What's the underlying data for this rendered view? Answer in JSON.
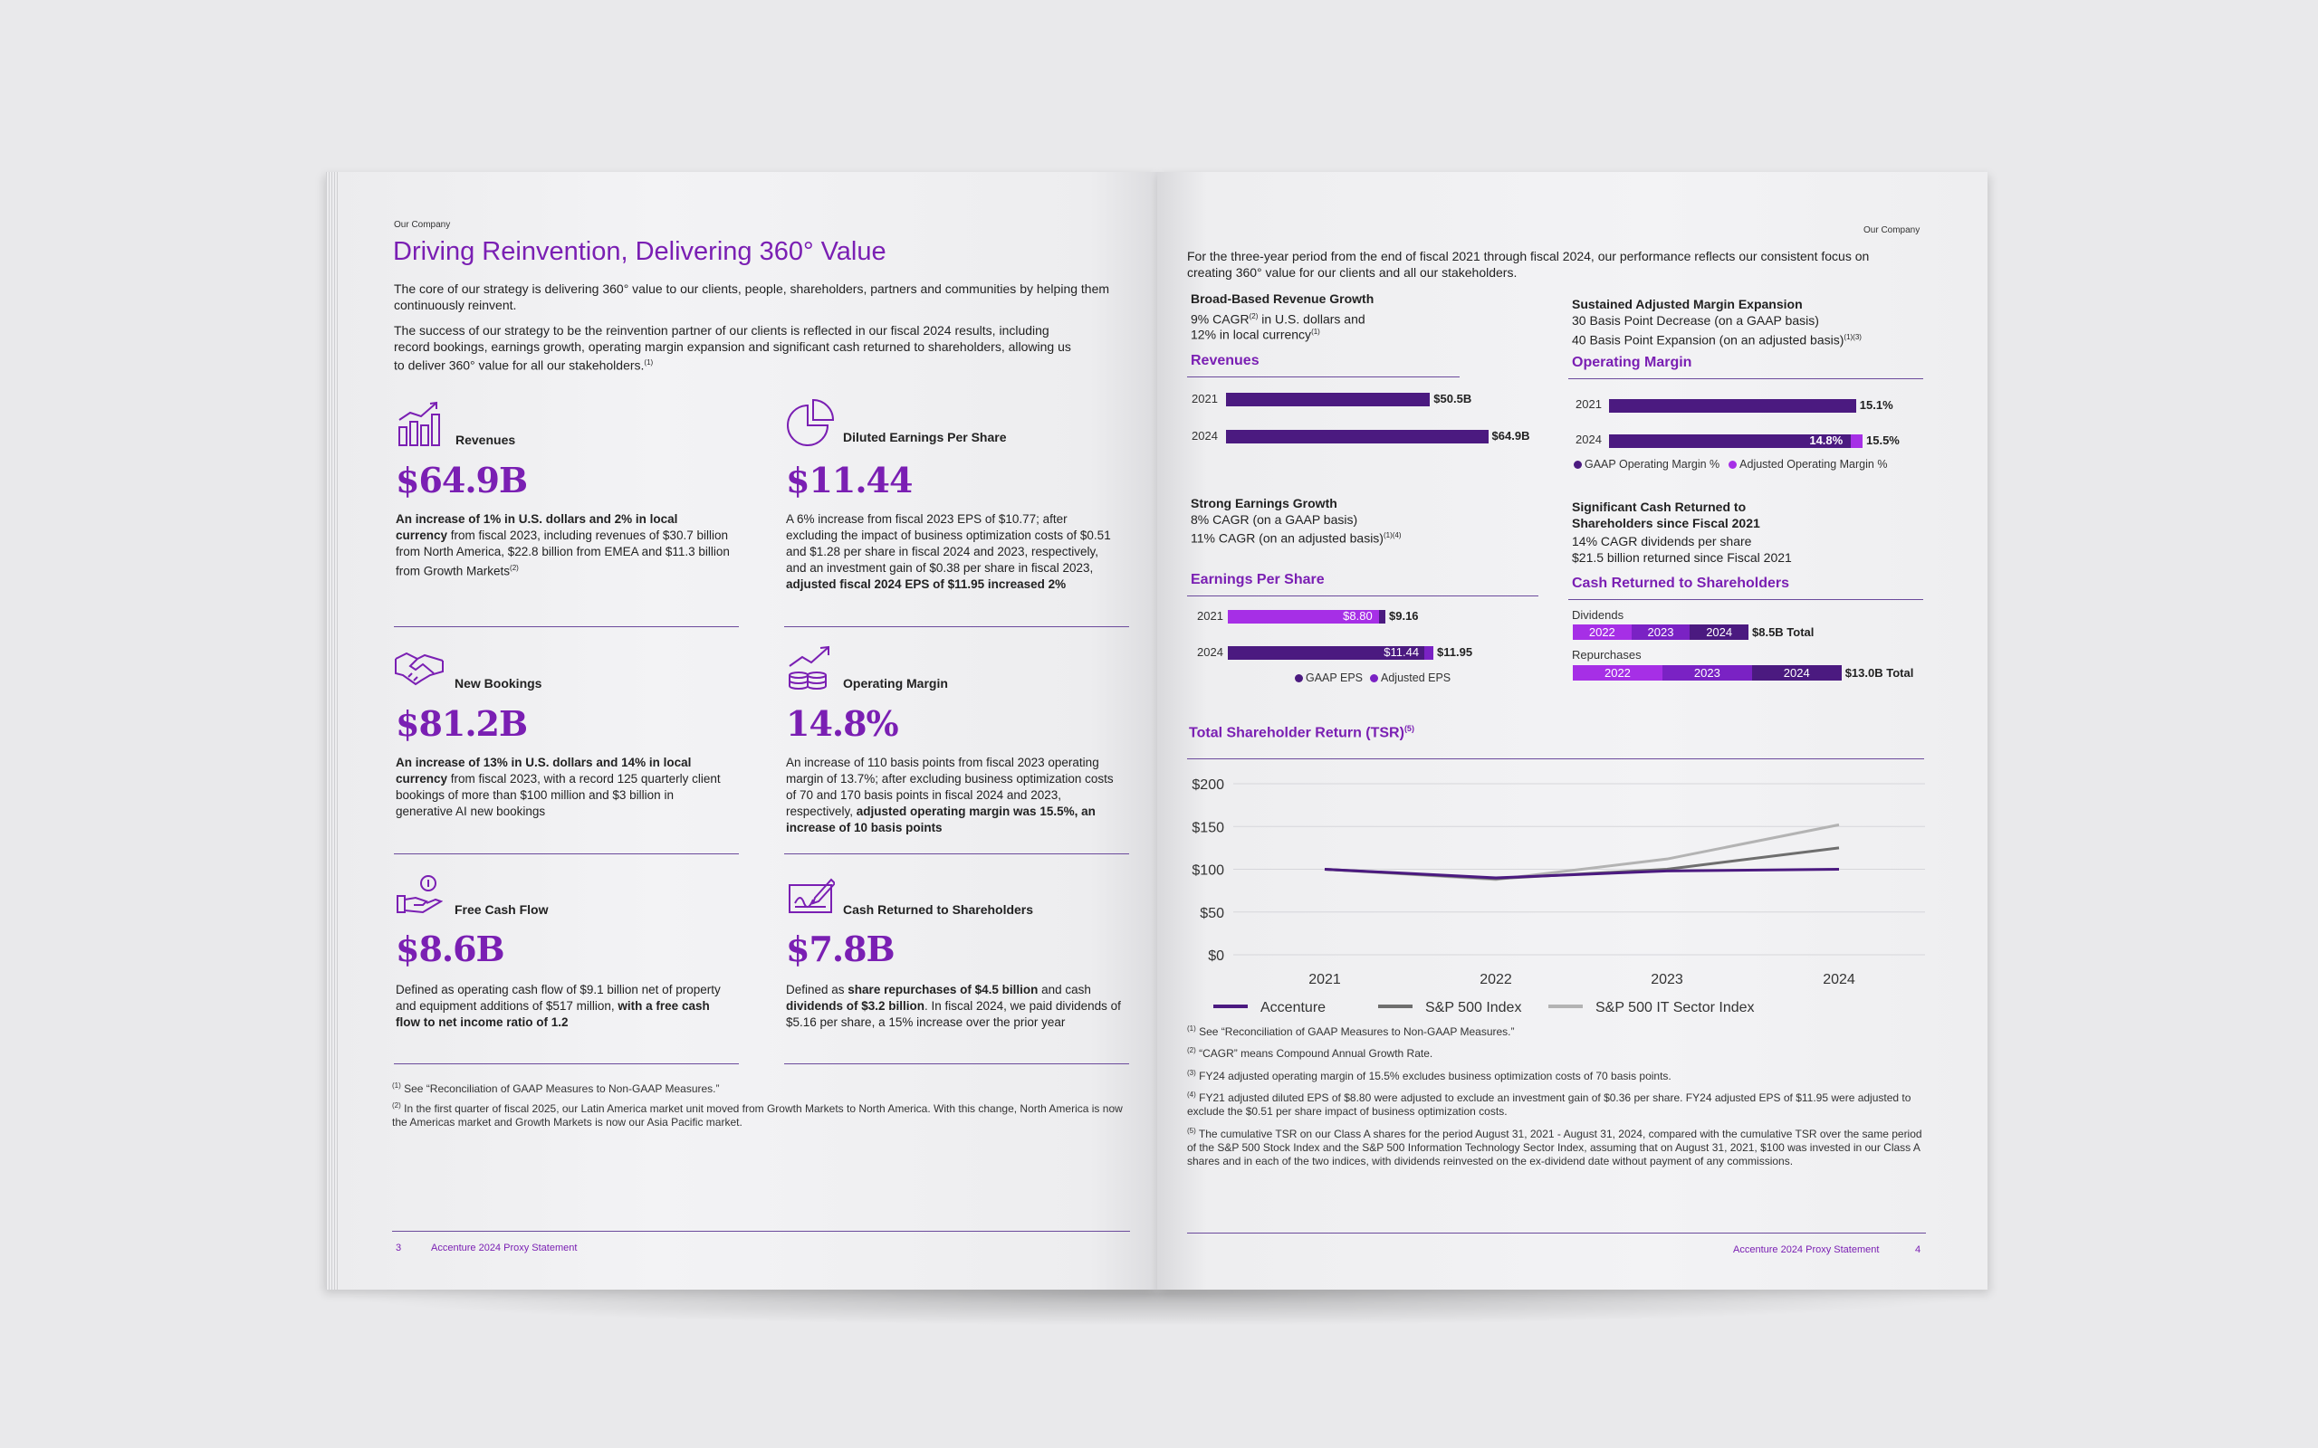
{
  "left": {
    "section": "Our Company",
    "title": "Driving Reinvention, Delivering 360° Value",
    "intro1": "The core of our strategy is delivering 360° value to our clients, people, shareholders, partners and communities by helping them continuously reinvent.",
    "intro2": "The success of our strategy to be the reinvention partner of our clients is reflected in our fiscal 2024 results, including record bookings, earnings growth, operating margin expansion and significant cash returned to shareholders, allowing us to deliver 360° value for all our stakeholders.",
    "intro2_sup": "(1)",
    "metrics": [
      {
        "label": "Revenues",
        "value": "$64.9B",
        "desc_bold": "An increase of 1% in U.S. dollars and 2% in local currency",
        "desc": " from fiscal 2023, including revenues of $30.7 billion from North America, $22.8 billion from EMEA and $11.3 billion from Growth Markets",
        "desc_sup": "(2)",
        "icon": "bar-chart-icon"
      },
      {
        "label": "Diluted Earnings Per Share",
        "value": "$11.44",
        "desc": "A 6% increase from fiscal 2023 EPS of $10.77; after excluding the impact of business optimization costs of $0.51 and $1.28 per share in fiscal 2024 and 2023, respectively, and an investment gain of $0.38 per share in fiscal 2023, ",
        "desc_bold": "adjusted fiscal 2024 EPS of $11.95 increased 2%",
        "icon": "pie-chart-icon"
      },
      {
        "label": "New Bookings",
        "value": "$81.2B",
        "desc_bold": "An increase of 13% in U.S. dollars and 14% in local currency",
        "desc": " from fiscal 2023, with a record 125 quarterly client bookings of more than $100 million and $3 billion in generative AI new bookings",
        "icon": "handshake-icon"
      },
      {
        "label": "Operating Margin",
        "value": "14.8%",
        "desc": "An increase of 110 basis points from fiscal 2023 operating margin of 13.7%; after excluding business optimization costs of 70 and 170 basis points in fiscal 2024 and 2023, respectively, ",
        "desc_bold": "adjusted operating margin was 15.5%, an increase of 10 basis points",
        "icon": "coins-growth-icon"
      },
      {
        "label": "Free Cash Flow",
        "value": "$8.6B",
        "desc": "Defined as operating cash flow of $9.1 billion net of property and equipment additions of $517 million, ",
        "desc_bold": "with a free cash flow to net income ratio of 1.2",
        "icon": "hand-coin-icon"
      },
      {
        "label": "Cash Returned to Shareholders",
        "value": "$7.8B",
        "desc_pre": "Defined as ",
        "desc_bold": "share repurchases of $4.5 billion",
        "desc_mid": " and cash ",
        "desc_bold2": "dividends of $3.2 billion",
        "desc": ". In fiscal 2024, we paid dividends of $5.16 per share, a 15% increase over the prior year",
        "icon": "check-signature-icon"
      }
    ],
    "footnotes": [
      {
        "num": "(1)",
        "text": "See “Reconciliation of GAAP Measures to Non-GAAP Measures.”"
      },
      {
        "num": "(2)",
        "text": "In the first quarter of fiscal 2025, our Latin America market unit moved from Growth Markets to North America. With this change, North America is now the Americas market and Growth Markets is now our Asia Pacific market."
      }
    ],
    "page_number": "3",
    "footer_title": "Accenture 2024 Proxy Statement"
  },
  "right": {
    "section": "Our Company",
    "intro": "For the three-year period from the end of fiscal 2021 through fiscal 2024, our performance reflects our consistent focus on creating 360° value for our clients and all our stakeholders.",
    "rev_block": {
      "head": "Broad-Based Revenue Growth",
      "line1": "9% CAGR",
      "line1_sup": "(2)",
      "line1b": " in U.S. dollars and",
      "line2": "12% in local currency",
      "line2_sup": "(1)",
      "chart_title": "Revenues"
    },
    "margin_block": {
      "head": "Sustained Adjusted Margin Expansion",
      "line1": "30 Basis Point Decrease (on a GAAP basis)",
      "line2": "40 Basis Point Expansion (on an adjusted basis)",
      "line2_sup": "(1)(3)",
      "chart_title": "Operating Margin"
    },
    "eps_block": {
      "head": "Strong Earnings Growth",
      "line1": "8% CAGR (on a GAAP basis)",
      "line2": "11% CAGR (on an adjusted basis)",
      "line2_sup": "(1)(4)",
      "chart_title": "Earnings Per Share"
    },
    "cash_block": {
      "head1": "Significant Cash Returned to",
      "head2": "Shareholders since Fiscal 2021",
      "line1": "14% CAGR dividends per share",
      "line2": "$21.5 billion returned since Fiscal 2021",
      "chart_title": "Cash Returned to Shareholders"
    },
    "tsr_title": "Total Shareholder Return (TSR)",
    "tsr_sup": "(5)",
    "footnotes": [
      {
        "num": "(1)",
        "text": "See “Reconciliation of GAAP Measures to Non-GAAP Measures.”"
      },
      {
        "num": "(2)",
        "text": "“CAGR” means Compound Annual Growth Rate."
      },
      {
        "num": "(3)",
        "text": "FY24 adjusted operating margin of 15.5% excludes business optimization costs of 70 basis points."
      },
      {
        "num": "(4)",
        "text": "FY21 adjusted diluted EPS of $8.80 were adjusted to exclude an investment gain of $0.36 per share. FY24 adjusted EPS of $11.95 were adjusted to exclude the $0.51 per share impact of business optimization costs."
      },
      {
        "num": "(5)",
        "text": "The cumulative TSR on our Class A shares for the period August 31, 2021 - August 31, 2024, compared with the cumulative TSR over the same period of the S&P 500 Stock Index and the S&P 500 Information Technology Sector Index, assuming that on August 31, 2021, $100 was invested in our Class A shares and in each of the two indices, with dividends reinvested on the ex-dividend date without payment of any commissions."
      }
    ],
    "page_number": "4",
    "footer_title": "Accenture 2024 Proxy Statement"
  },
  "colors": {
    "accent": "#7a1fb3",
    "dark_purple": "#4b1a80",
    "bright_purple": "#a62fe6",
    "mid_purple": "#7a22c4"
  },
  "chart_data": [
    {
      "type": "bar",
      "title": "Revenues",
      "categories": [
        "2021",
        "2024"
      ],
      "values": [
        50.5,
        64.9
      ],
      "labels": [
        "$50.5B",
        "$64.9B"
      ]
    },
    {
      "type": "bar",
      "title": "Operating Margin",
      "categories": [
        "2021",
        "2024"
      ],
      "series": [
        {
          "name": "GAAP Operating Margin %",
          "values": [
            15.1,
            14.8
          ]
        },
        {
          "name": "Adjusted Operating Margin %",
          "values": [
            15.1,
            15.5
          ]
        }
      ],
      "labels": {
        "2021": [
          "15.1%"
        ],
        "2024": [
          "14.8%",
          "15.5%"
        ]
      },
      "legend": [
        "GAAP Operating Margin %",
        "Adjusted Operating Margin %"
      ]
    },
    {
      "type": "bar",
      "title": "Earnings Per Share",
      "categories": [
        "2021",
        "2024"
      ],
      "series": [
        {
          "name": "GAAP EPS",
          "values": [
            9.16,
            11.44
          ]
        },
        {
          "name": "Adjusted EPS",
          "values": [
            8.8,
            11.95
          ]
        }
      ],
      "labels": {
        "2021": [
          "$8.80",
          "$9.16"
        ],
        "2024": [
          "$11.44",
          "$11.95"
        ]
      },
      "legend": [
        "GAAP EPS",
        "Adjusted EPS"
      ]
    },
    {
      "type": "bar",
      "title": "Cash Returned to Shareholders",
      "stacked": true,
      "rows": [
        {
          "name": "Dividends",
          "segments": [
            "2022",
            "2023",
            "2024"
          ],
          "total_label": "$8.5B Total",
          "total": 8.5
        },
        {
          "name": "Repurchases",
          "segments": [
            "2022",
            "2023",
            "2024"
          ],
          "total_label": "$13.0B Total",
          "total": 13.0
        }
      ]
    },
    {
      "type": "line",
      "title": "Total Shareholder Return (TSR)",
      "x": [
        "2021",
        "2022",
        "2023",
        "2024"
      ],
      "y_ticks": [
        "$0",
        "$50",
        "$100",
        "$150",
        "$200"
      ],
      "ylim": [
        0,
        200
      ],
      "series": [
        {
          "name": "Accenture",
          "values": [
            100,
            90,
            98,
            100
          ],
          "color": "#4b1a80"
        },
        {
          "name": "S&P 500 Index",
          "values": [
            100,
            89,
            100,
            125
          ],
          "color": "#6e6e6e"
        },
        {
          "name": "S&P 500 IT Sector Index",
          "values": [
            100,
            88,
            112,
            152
          ],
          "color": "#b3b3b3"
        }
      ]
    }
  ]
}
